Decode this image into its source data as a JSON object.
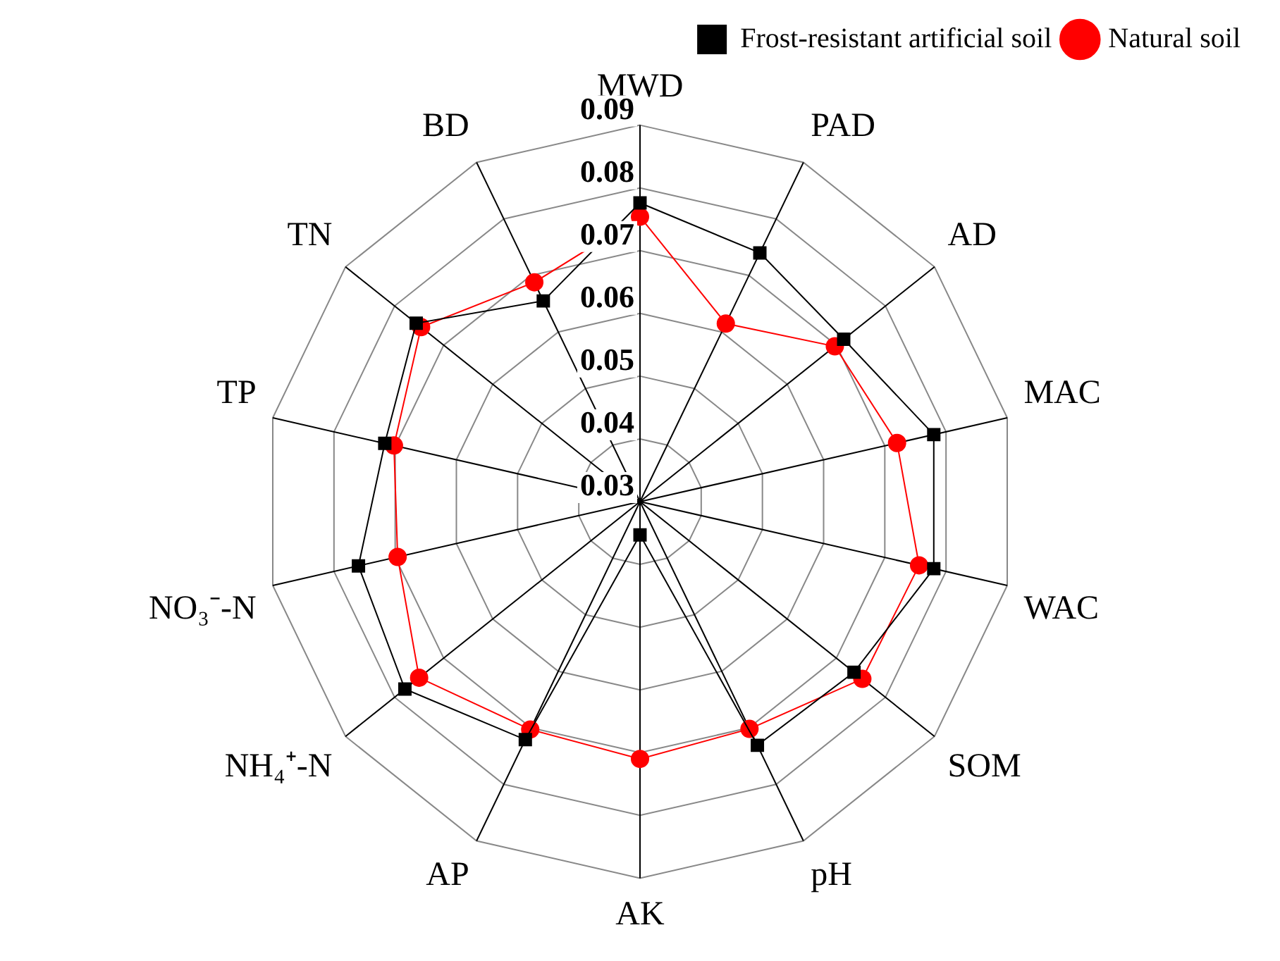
{
  "chart_data": {
    "type": "radar",
    "categories": [
      "MWD",
      "PAD",
      "AD",
      "MAC",
      "WAC",
      "SOM",
      "pH",
      "AK",
      "AP",
      "NH₄⁺-N",
      "NO₃⁻-N",
      "TP",
      "TN",
      "BD"
    ],
    "series": [
      {
        "name": "Frost-resistant artificial soil",
        "color": "#000000",
        "marker": "square",
        "values": [
          0.0776,
          0.074,
          0.0715,
          0.078,
          0.078,
          0.0736,
          0.0731,
          0.0353,
          0.0721,
          0.0779,
          0.076,
          0.0717,
          0.0756,
          0.0655
        ]
      },
      {
        "name": "Natural soil",
        "color": "#ff0000",
        "marker": "circle",
        "values": [
          0.0754,
          0.0615,
          0.0697,
          0.072,
          0.0756,
          0.0753,
          0.0702,
          0.071,
          0.0703,
          0.075,
          0.0696,
          0.0702,
          0.0746,
          0.0688
        ]
      }
    ],
    "ylim": [
      0.03,
      0.09
    ],
    "yticks": [
      0.03,
      0.04,
      0.05,
      0.06,
      0.07,
      0.08,
      0.09
    ],
    "grid": true,
    "legend": "top right"
  }
}
